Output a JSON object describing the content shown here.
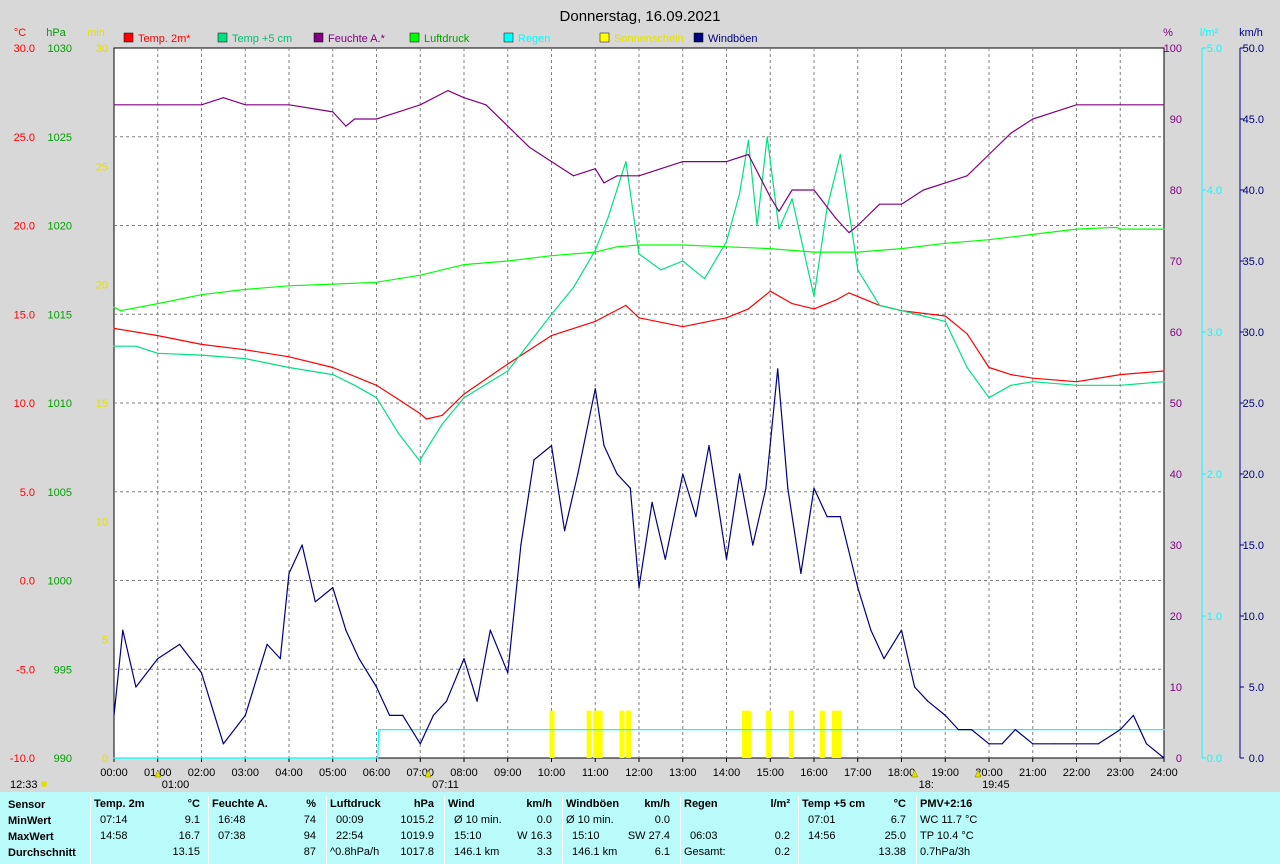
{
  "chart_data": {
    "type": "line",
    "title": "Donnerstag, 16.09.2021",
    "x_ticks": [
      "00:00",
      "01:00",
      "02:00",
      "03:00",
      "04:00",
      "05:00",
      "06:00",
      "07:00",
      "08:00",
      "09:00",
      "10:00",
      "11:00",
      "12:00",
      "13:00",
      "14:00",
      "15:00",
      "16:00",
      "17:00",
      "18:00",
      "19:00",
      "20:00",
      "21:00",
      "22:00",
      "23:00",
      "24:00"
    ],
    "axes": {
      "temp_c": {
        "unit": "°C",
        "range": [
          -10,
          30
        ],
        "ticks": [
          "30.0",
          "25.0",
          "20.0",
          "15.0",
          "10.0",
          "5.0",
          "0.0",
          "-5.0",
          "-10.0"
        ]
      },
      "pressure_hpa": {
        "unit": "hPa",
        "range": [
          990,
          1030
        ],
        "ticks": [
          "1030",
          "1025",
          "1020",
          "1015",
          "1010",
          "1005",
          "1000",
          "995",
          "990"
        ]
      },
      "sunshine_min": {
        "unit": "min",
        "range": [
          0,
          30
        ],
        "ticks": [
          "30",
          "25",
          "20",
          "15",
          "10",
          "5",
          "0"
        ]
      },
      "humidity_pct": {
        "unit": "%",
        "range": [
          0,
          100
        ],
        "ticks": [
          "100",
          "90",
          "80",
          "70",
          "60",
          "50",
          "40",
          "30",
          "20",
          "10",
          "0"
        ]
      },
      "rain_lm2": {
        "unit": "l/m²",
        "range": [
          0,
          5
        ],
        "ticks": [
          "5.0",
          "4.0",
          "3.0",
          "2.0",
          "1.0",
          "0.0"
        ]
      },
      "wind_kmh": {
        "unit": "km/h",
        "range": [
          0,
          50
        ],
        "ticks": [
          "50.0",
          "45.0",
          "40.0",
          "35.0",
          "30.0",
          "25.0",
          "20.0",
          "15.0",
          "10.0",
          "5.0",
          "0.0"
        ]
      }
    },
    "legend": [
      {
        "name": "Temp. 2m*",
        "color": "#ff0000"
      },
      {
        "name": "Temp +5 cm",
        "color": "#00e080"
      },
      {
        "name": "Feuchte A.*",
        "color": "#800080"
      },
      {
        "name": "Luftdruck",
        "color": "#00ff00"
      },
      {
        "name": "Regen",
        "color": "#00ffff"
      },
      {
        "name": "Sonnenschein",
        "color": "#ffff00"
      },
      {
        "name": "Windböen",
        "color": "#000080"
      }
    ],
    "series": [
      {
        "name": "Temp. 2m*",
        "axis": "temp_c",
        "color": "#ff0000",
        "x": [
          0,
          1,
          2,
          3,
          4,
          5,
          6,
          6.5,
          7,
          7.14,
          7.5,
          8,
          9,
          10,
          11,
          11.7,
          12,
          13,
          14,
          14.5,
          15,
          15.5,
          16,
          16.5,
          16.8,
          17.5,
          18,
          19,
          19.5,
          20,
          20.5,
          21,
          22,
          23,
          24
        ],
        "y": [
          14.2,
          13.8,
          13.3,
          13.0,
          12.6,
          12.0,
          11.0,
          10.2,
          9.4,
          9.1,
          9.3,
          10.5,
          12.2,
          13.8,
          14.6,
          15.5,
          14.8,
          14.3,
          14.8,
          15.3,
          16.3,
          15.6,
          15.3,
          15.8,
          16.2,
          15.5,
          15.2,
          14.9,
          13.9,
          12.0,
          11.6,
          11.4,
          11.2,
          11.6,
          11.8
        ]
      },
      {
        "name": "Temp +5 cm",
        "axis": "temp_c",
        "color": "#00e080",
        "x": [
          0,
          0.5,
          1,
          2,
          3,
          4,
          5,
          5.5,
          6,
          6.5,
          7,
          7.02,
          7.5,
          8,
          9,
          10,
          10.5,
          11,
          11.3,
          11.7,
          12,
          12.5,
          13,
          13.5,
          14,
          14.3,
          14.5,
          14.7,
          14.93,
          15.2,
          15.5,
          16,
          16.3,
          16.6,
          17,
          17.5,
          18,
          18.5,
          19,
          19.5,
          20,
          20.5,
          21,
          22,
          23,
          24
        ],
        "y": [
          13.2,
          13.2,
          12.8,
          12.7,
          12.5,
          12.0,
          11.6,
          11.0,
          10.3,
          8.3,
          6.7,
          6.9,
          8.8,
          10.3,
          11.8,
          15.0,
          16.5,
          18.6,
          20.5,
          23.6,
          18.4,
          17.5,
          18.0,
          17.0,
          19.1,
          21.8,
          24.8,
          20.0,
          25.0,
          19.8,
          21.5,
          16.0,
          21.0,
          24.0,
          17.5,
          15.5,
          15.2,
          14.9,
          14.6,
          12.0,
          10.3,
          11.0,
          11.2,
          11.0,
          11.0,
          11.2
        ]
      },
      {
        "name": "Feuchte A.*",
        "axis": "humidity_pct",
        "color": "#800080",
        "x": [
          0,
          1,
          2,
          2.5,
          3,
          4,
          5,
          5.3,
          5.5,
          6,
          6.5,
          7,
          7.63,
          8,
          8.5,
          9,
          9.5,
          10,
          10.5,
          11,
          11.2,
          11.5,
          12,
          12.5,
          13,
          14,
          14.5,
          15,
          15.2,
          15.5,
          16,
          16.5,
          16.8,
          17,
          17.5,
          18,
          18.5,
          19,
          19.5,
          20,
          20.5,
          21,
          21.5,
          22,
          23,
          24
        ],
        "y": [
          92,
          92,
          92,
          93,
          92,
          92,
          91,
          89,
          90,
          90,
          91,
          92,
          94,
          93,
          92,
          89,
          86,
          84,
          82,
          83,
          81,
          82,
          82,
          83,
          84,
          84,
          85,
          79,
          77,
          80,
          80,
          76,
          74,
          75,
          78,
          78,
          80,
          81,
          82,
          85,
          88,
          90,
          91,
          92,
          92,
          92
        ]
      },
      {
        "name": "Luftdruck",
        "axis": "pressure_hpa",
        "color": "#00ff00",
        "x": [
          0,
          0.15,
          1,
          2,
          3,
          4,
          5,
          6,
          7,
          8,
          9,
          10,
          11,
          11.5,
          12,
          13,
          14,
          15,
          16,
          17,
          18,
          19,
          20,
          21,
          22,
          22.9,
          23,
          24
        ],
        "y": [
          1015.4,
          1015.2,
          1015.6,
          1016.1,
          1016.4,
          1016.6,
          1016.7,
          1016.8,
          1017.2,
          1017.8,
          1018.0,
          1018.3,
          1018.5,
          1018.8,
          1018.9,
          1018.9,
          1018.8,
          1018.7,
          1018.5,
          1018.5,
          1018.7,
          1019.0,
          1019.2,
          1019.5,
          1019.8,
          1019.9,
          1019.8,
          1019.8
        ]
      },
      {
        "name": "Regen",
        "axis": "rain_lm2",
        "color": "#00ffff",
        "x": [
          0,
          6.03,
          6.05,
          24
        ],
        "y": [
          0,
          0,
          0.2,
          0.2
        ]
      },
      {
        "name": "Windböen",
        "axis": "wind_kmh",
        "color": "#000080",
        "x": [
          0,
          0.2,
          0.5,
          1,
          1.5,
          2,
          2.3,
          2.5,
          3,
          3.5,
          3.8,
          4,
          4.3,
          4.6,
          5,
          5.3,
          5.6,
          6,
          6.3,
          6.6,
          7,
          7.3,
          7.6,
          8,
          8.3,
          8.6,
          9,
          9.3,
          9.6,
          10,
          10.3,
          10.6,
          11,
          11.2,
          11.5,
          11.8,
          12,
          12.3,
          12.6,
          13,
          13.3,
          13.6,
          14,
          14.3,
          14.6,
          14.9,
          15.17,
          15.4,
          15.7,
          16,
          16.3,
          16.6,
          17,
          17.3,
          17.6,
          18,
          18.3,
          18.6,
          19,
          19.3,
          19.6,
          20,
          20.3,
          20.6,
          21,
          21.5,
          22,
          22.5,
          23,
          23.3,
          23.6,
          24
        ],
        "y": [
          3,
          9,
          5,
          7,
          8,
          6,
          3,
          1,
          3,
          8,
          7,
          13,
          15,
          11,
          12,
          9,
          7,
          5,
          3,
          3,
          1,
          3,
          4,
          7,
          4,
          9,
          6,
          15,
          21,
          22,
          16,
          20,
          26,
          22,
          20,
          19,
          12,
          18,
          14,
          20,
          17,
          22,
          14,
          20,
          15,
          19,
          27.4,
          19,
          13,
          19,
          17,
          17,
          12,
          9,
          7,
          9,
          5,
          4,
          3,
          2,
          2,
          1,
          1,
          2,
          1,
          1,
          1,
          1,
          2,
          3,
          1,
          0
        ]
      }
    ],
    "sunshine": {
      "axis": "sunshine_min",
      "color": "#ffff00",
      "bars": [
        {
          "x": 10.0,
          "y": 2
        },
        {
          "x": 10.85,
          "y": 2
        },
        {
          "x": 11.0,
          "y": 2
        },
        {
          "x": 11.1,
          "y": 2
        },
        {
          "x": 11.6,
          "y": 2
        },
        {
          "x": 11.75,
          "y": 2
        },
        {
          "x": 14.4,
          "y": 2
        },
        {
          "x": 14.5,
          "y": 2
        },
        {
          "x": 14.95,
          "y": 2
        },
        {
          "x": 15.47,
          "y": 2
        },
        {
          "x": 16.18,
          "y": 2
        },
        {
          "x": 16.45,
          "y": 2
        },
        {
          "x": 16.55,
          "y": 2
        }
      ]
    },
    "markers": [
      {
        "x": 1.0,
        "label": "01:00"
      },
      {
        "x": 7.18,
        "label": "07:11"
      },
      {
        "x": 18.3,
        "label": "18:"
      },
      {
        "x": 19.75,
        "label": "19:45"
      }
    ],
    "corner_time": "12:33",
    "grid": true
  },
  "summary": {
    "headers": {
      "sensor": "Sensor",
      "temp2m": "Temp. 2m",
      "temp2m_unit": "°C",
      "hum": "Feuchte A.",
      "hum_unit": "%",
      "press": "Luftdruck",
      "press_unit": "hPa",
      "wind": "Wind",
      "wind_unit": "km/h",
      "gust": "Windböen",
      "gust_unit": "km/h",
      "rain": "Regen",
      "rain_unit": "l/m²",
      "temp5": "Temp +5 cm",
      "temp5_unit": "°C",
      "pmv": "PMV+2:16"
    },
    "row_labels": {
      "min": "MinWert",
      "max": "MaxWert",
      "avg": "Durchschnitt"
    },
    "temp2m": {
      "min_time": "07:14",
      "min": "9.1",
      "max_time": "14:58",
      "max": "16.7",
      "avg": "13.15"
    },
    "hum": {
      "min_time": "16:48",
      "min": "74",
      "max_time": "07:38",
      "max": "94",
      "avg": "87"
    },
    "press": {
      "min_time": "00:09",
      "min": "1015.2",
      "max_time": "22:54",
      "max": "1019.9",
      "avg_label": "^0.8hPa/h",
      "avg": "1017.8"
    },
    "wind": {
      "r1_label": "Ø 10 min.",
      "r1_val": "0.0",
      "r2_time": "15:10",
      "r2_val": "W 16.3",
      "r3_label": "146.1 km",
      "r3_val": "3.3"
    },
    "gust": {
      "r1_label": "Ø 10 min.",
      "r1_val": "0.0",
      "r2_time": "15:10",
      "r2_val": "SW 27.4",
      "r3_label": "146.1 km",
      "r3_val": "6.1"
    },
    "rain": {
      "r2_time": "06:03",
      "r2_val": "0.2",
      "r3_label": "Gesamt:",
      "r3_val": "0.2"
    },
    "temp5": {
      "min_time": "07:01",
      "min": "6.7",
      "max_time": "14:56",
      "max": "25.0",
      "avg": "13.38"
    },
    "pmv": {
      "r1": "WC 11.7 °C",
      "r2": "TP 10.4 °C",
      "r3": "0.7hPa/3h"
    }
  }
}
